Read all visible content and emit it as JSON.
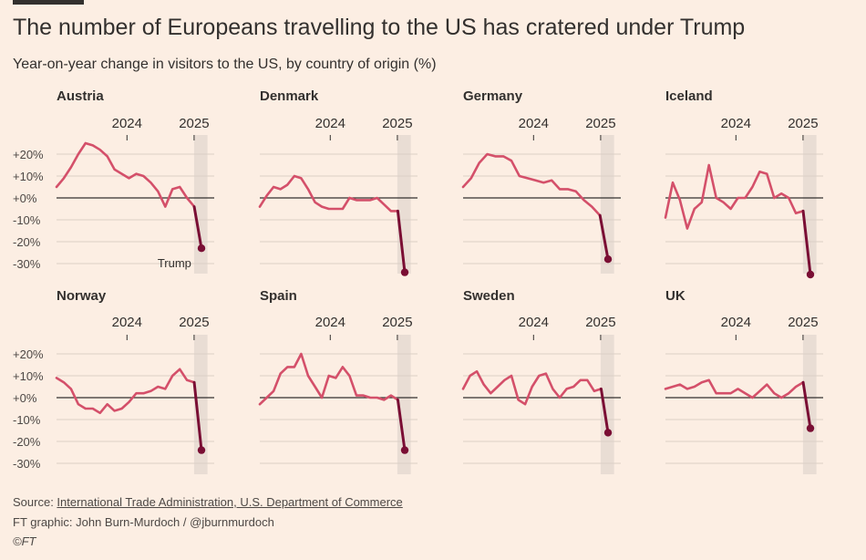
{
  "header": {
    "title": "The number of Europeans travelling to the US has cratered under Trump",
    "subtitle": "Year-on-year change in visitors to the US, by country of origin (%)"
  },
  "footer": {
    "source_prefix": "Source: ",
    "source_link": "International Trade Administration, U.S. Department of Commerce",
    "credit": "FT graphic: John Burn-Murdoch / @jburnmurdoch",
    "logo": "©FT"
  },
  "colors": {
    "background": "#FCEEE3",
    "line": "#D4506A",
    "trump_segment": "#7A0E34",
    "highlight_band": "#E9DDD4",
    "gridline": "#DCD0C6",
    "zero_line": "#33302E"
  },
  "chart_data": {
    "type": "line",
    "layout": "small-multiples 4x2",
    "y_tick_labels": [
      "+20%",
      "+10%",
      "+0%",
      "-10%",
      "-20%",
      "-30%"
    ],
    "y_ticks": [
      20,
      10,
      0,
      -10,
      -20,
      -30
    ],
    "ylim": [
      -35,
      27
    ],
    "x_year_labels": [
      {
        "label": "2024",
        "x": 2024.0
      },
      {
        "label": "2025",
        "x": 2025.0
      }
    ],
    "xlim": [
      2022.95,
      2025.3
    ],
    "highlight_band": [
      2025.0,
      2025.2
    ],
    "annotation": {
      "panel": "Austria",
      "text": "Trump"
    },
    "grid": true,
    "panels": [
      {
        "name": "Austria",
        "values": [
          5,
          9,
          14,
          20,
          25,
          24,
          22,
          19,
          13,
          11,
          9,
          11,
          10,
          7,
          3,
          -4,
          4,
          5,
          0,
          -4,
          -23
        ]
      },
      {
        "name": "Denmark",
        "values": [
          -4,
          1,
          5,
          4,
          6,
          10,
          9,
          4,
          -2,
          -4,
          -5,
          -5,
          -5,
          0,
          -1,
          -1,
          -1,
          0,
          -3,
          -6,
          -6,
          -34
        ]
      },
      {
        "name": "Germany",
        "values": [
          5,
          9,
          16,
          20,
          19,
          19,
          17,
          10,
          9,
          8,
          7,
          8,
          4,
          4,
          3,
          -1,
          -4,
          -8,
          -28
        ]
      },
      {
        "name": "Iceland",
        "values": [
          -9,
          7,
          -1,
          -14,
          -5,
          -2,
          15,
          0,
          -2,
          -5,
          0,
          0,
          5,
          12,
          11,
          0,
          2,
          0,
          -7,
          -6,
          -35
        ]
      },
      {
        "name": "Norway",
        "values": [
          9,
          7,
          4,
          -3,
          -5,
          -5,
          -7,
          -3,
          -6,
          -5,
          -2,
          2,
          2,
          3,
          5,
          4,
          10,
          13,
          8,
          7,
          -24
        ]
      },
      {
        "name": "Spain",
        "values": [
          -3,
          0,
          3,
          11,
          14,
          14,
          20,
          10,
          5,
          0,
          10,
          9,
          14,
          10,
          1,
          1,
          0,
          0,
          -1,
          1,
          -1,
          -24
        ]
      },
      {
        "name": "Sweden",
        "values": [
          4,
          10,
          12,
          6,
          2,
          5,
          8,
          10,
          -1,
          -3,
          5,
          10,
          11,
          4,
          0,
          4,
          5,
          8,
          8,
          3,
          4,
          -16
        ]
      },
      {
        "name": "UK",
        "values": [
          4,
          5,
          6,
          4,
          5,
          7,
          8,
          2,
          2,
          2,
          4,
          2,
          0,
          3,
          6,
          2,
          0,
          2,
          5,
          7,
          -14
        ]
      }
    ]
  }
}
